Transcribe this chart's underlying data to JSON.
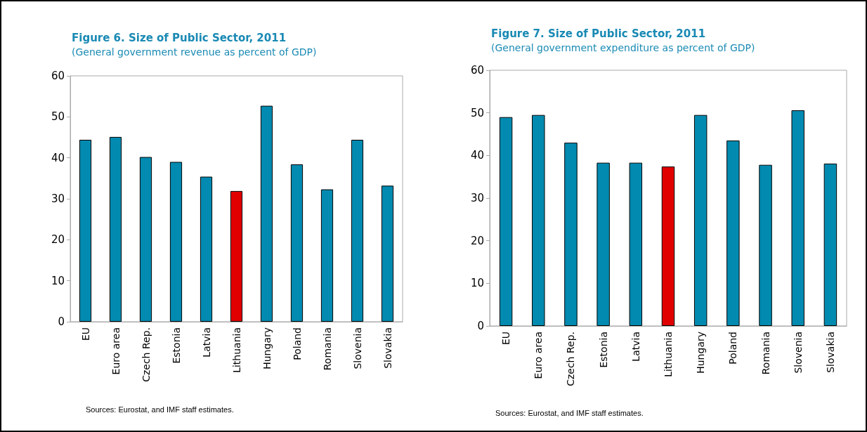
{
  "chart_data": [
    {
      "type": "bar",
      "title": "Figure 6. Size of Public Sector, 2011",
      "subtitle": "(General government revenue as percent of GDP)",
      "categories": [
        "EU",
        "Euro area",
        "Czech Rep.",
        "Estonia",
        "Latvia",
        "Lithuania",
        "Hungary",
        "Poland",
        "Romania",
        "Slovenia",
        "Slovakia"
      ],
      "values": [
        44.4,
        45.1,
        40.2,
        39.0,
        35.4,
        31.9,
        52.7,
        38.4,
        32.3,
        44.4,
        33.2
      ],
      "colors": [
        "#028ab0",
        "#028ab0",
        "#028ab0",
        "#028ab0",
        "#028ab0",
        "#e00000",
        "#028ab0",
        "#028ab0",
        "#028ab0",
        "#028ab0",
        "#028ab0"
      ],
      "ylim": [
        0,
        60
      ],
      "yticks": [
        0,
        10,
        20,
        30,
        40,
        50,
        60
      ],
      "grid": false,
      "annotations": [
        "Sources: Eurostat, and IMF staff estimates."
      ]
    },
    {
      "type": "bar",
      "title": "Figure 7. Size of Public Sector, 2011",
      "subtitle": "(General government expenditure as percent of GDP)",
      "categories": [
        "EU",
        "Euro area",
        "Czech Rep.",
        "Estonia",
        "Latvia",
        "Lithuania",
        "Hungary",
        "Poland",
        "Romania",
        "Slovenia",
        "Slovakia"
      ],
      "values": [
        49.0,
        49.5,
        43.0,
        38.3,
        38.3,
        37.4,
        49.5,
        43.5,
        37.8,
        50.6,
        38.1
      ],
      "colors": [
        "#028ab0",
        "#028ab0",
        "#028ab0",
        "#028ab0",
        "#028ab0",
        "#e00000",
        "#028ab0",
        "#028ab0",
        "#028ab0",
        "#028ab0",
        "#028ab0"
      ],
      "ylim": [
        0,
        60
      ],
      "yticks": [
        0,
        10,
        20,
        30,
        40,
        50,
        60
      ],
      "grid": false,
      "annotations": [
        "Sources: Eurostat, and IMF staff estimates."
      ]
    }
  ]
}
